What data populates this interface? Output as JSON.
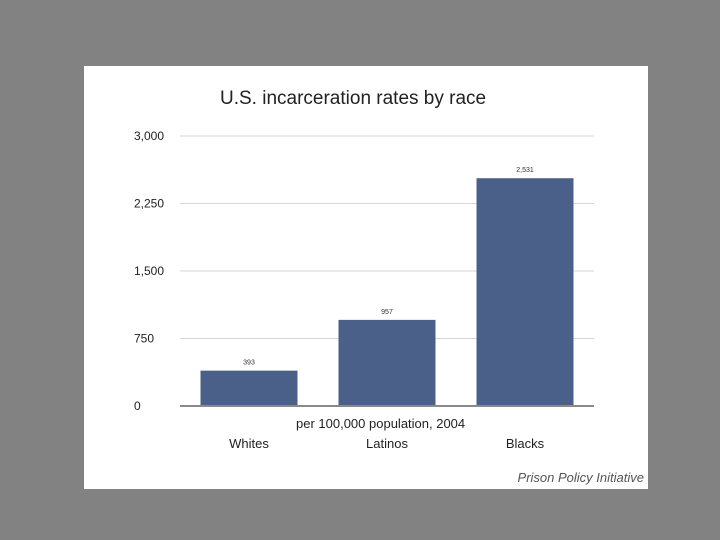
{
  "chart_data": {
    "type": "bar",
    "title": "U.S. incarceration rates by race",
    "subtitle": "per 100,000 population, 2004",
    "categories": [
      "Whites",
      "Latinos",
      "Blacks"
    ],
    "values": [
      393,
      957,
      2531
    ],
    "value_labels": [
      "393",
      "957",
      "2,531"
    ],
    "y_ticks": [
      0,
      750,
      1500,
      2250,
      3000
    ],
    "y_tick_labels": [
      "0",
      "750",
      "1,500",
      "2,250",
      "3,000"
    ],
    "ylim": [
      0,
      3000
    ],
    "xlabel": "",
    "ylabel": "",
    "grid": true,
    "bar_color": "#4a6089"
  },
  "source": "Prison Policy Initiative"
}
